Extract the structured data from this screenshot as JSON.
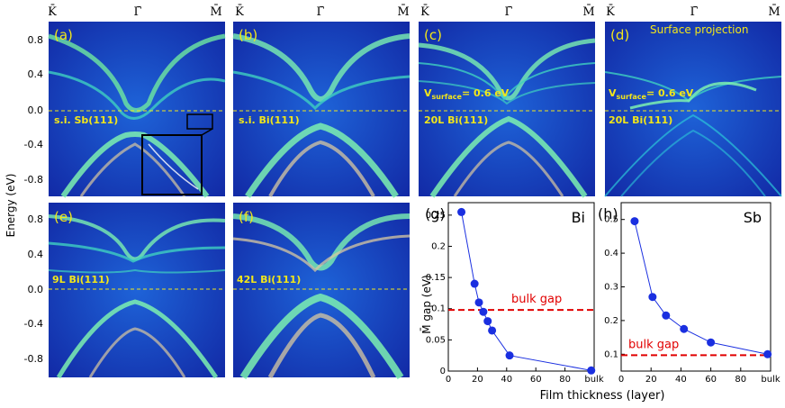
{
  "kpoints": [
    "K̄",
    "Γ̄",
    "M̄"
  ],
  "energy_axis": {
    "label": "Energy (eV)",
    "ticks": [
      "0.8",
      "0.4",
      "0.0",
      "-0.4",
      "-0.8"
    ]
  },
  "panels": [
    {
      "letter": "(a)",
      "label": "s.i. Sb(111)"
    },
    {
      "letter": "(b)",
      "label": "s.i. Bi(111)"
    },
    {
      "letter": "(c)",
      "vsurf": "V",
      "vsurf_sub": "surface",
      "vsurf_val": "= 0.6 eV",
      "label": "20L Bi(111)"
    },
    {
      "letter": "(d)",
      "title": "Surface projection",
      "vsurf": "V",
      "vsurf_sub": "surface",
      "vsurf_val": "= 0.6 eV",
      "label": "20L Bi(111)"
    },
    {
      "letter": "(e)",
      "label": "9L Bi(111)"
    },
    {
      "letter": "(f)",
      "label": "42L Bi(111)"
    }
  ],
  "colors": {
    "band_dark": "#0a1a9c",
    "band_mid": "#1a6fe0",
    "band_green": "#6fe8a0",
    "series": "#1a2fe0",
    "gap_line": "#e10000",
    "fermi": "#f2e61a"
  },
  "chart_data": [
    {
      "type": "line",
      "panel": "(g)",
      "material": "Bi",
      "xlabel": "Film thickness (layer)",
      "ylabel": "M̄ gap (eV)",
      "xlim": [
        0,
        100
      ],
      "ylim": [
        0,
        0.27
      ],
      "xticks": [
        "0",
        "20",
        "40",
        "60",
        "80",
        "bulk"
      ],
      "yticks": [
        "0",
        "0.05",
        "0.1",
        "0.15",
        "0.2",
        "0.25"
      ],
      "x": [
        9,
        18,
        21,
        24,
        27,
        30,
        42,
        98
      ],
      "y": [
        0.255,
        0.14,
        0.11,
        0.095,
        0.08,
        0.065,
        0.025,
        0.001
      ],
      "bulk_gap": 0.098,
      "bulk_gap_label": "bulk gap"
    },
    {
      "type": "line",
      "panel": "(h)",
      "material": "Sb",
      "xlim": [
        0,
        100
      ],
      "ylim": [
        0.05,
        0.55
      ],
      "xticks": [
        "0",
        "20",
        "40",
        "60",
        "80",
        "bulk"
      ],
      "yticks": [
        "0.1",
        "0.2",
        "0.3",
        "0.4",
        "0.5"
      ],
      "x": [
        9,
        21,
        30,
        42,
        60,
        98
      ],
      "y": [
        0.495,
        0.27,
        0.215,
        0.175,
        0.135,
        0.1
      ],
      "bulk_gap": 0.097,
      "bulk_gap_label": "bulk gap"
    }
  ]
}
